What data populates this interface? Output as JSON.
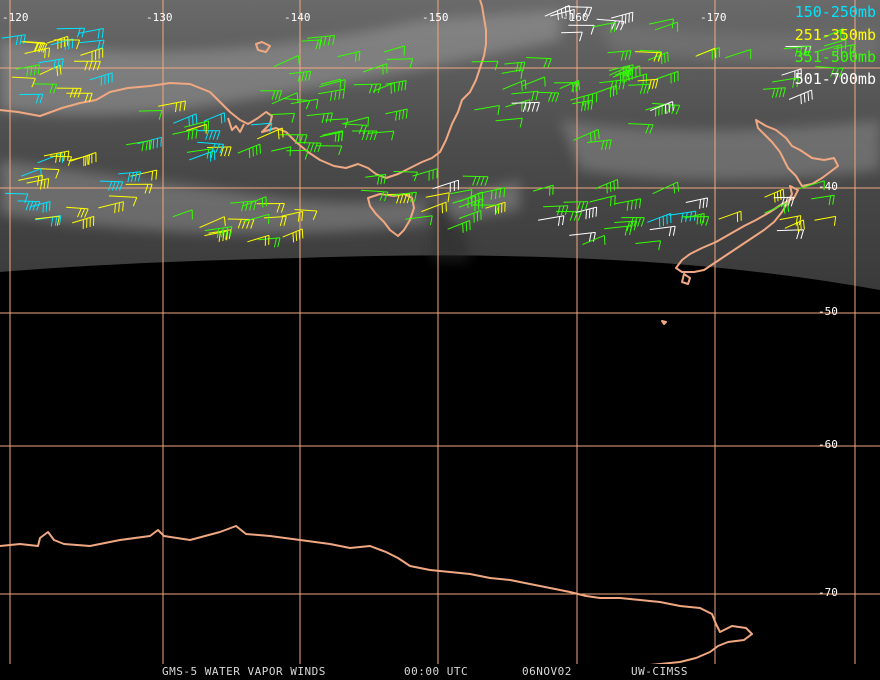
{
  "map": {
    "lon_labels": [
      "-120",
      "-130",
      "-140",
      "-150",
      "-160",
      "-170"
    ],
    "lat_labels": [
      "-40",
      "-50",
      "-60",
      "-70"
    ]
  },
  "legend": [
    {
      "label": "150-250mb",
      "color": "#00e5ff"
    },
    {
      "label": "251-350mb",
      "color": "#ffff00"
    },
    {
      "label": "351-500mb",
      "color": "#33ff00"
    },
    {
      "label": "501-700mb",
      "color": "#ffffff"
    }
  ],
  "footer": {
    "product": "GMS-5 WATER VAPOR WINDS",
    "time": "00:00 UTC",
    "date": "06NOV02",
    "source": "UW-CIMSS"
  },
  "colors": {
    "gridline": "#f0a882",
    "coastline": "#f0a882",
    "background": "#000000"
  }
}
